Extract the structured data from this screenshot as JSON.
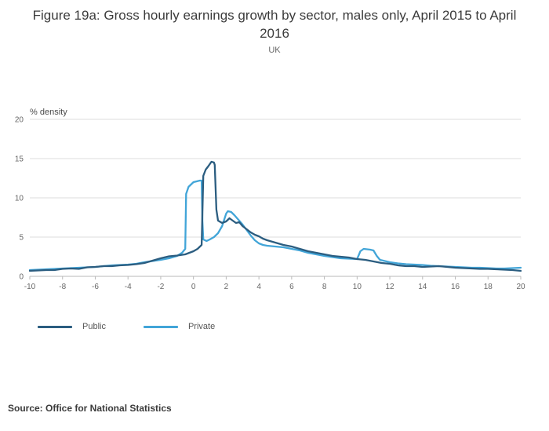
{
  "header": {
    "title": "Figure 19a: Gross hourly earnings growth by sector, males only, April 2015 to April 2016",
    "subtitle": "UK"
  },
  "source": "Source: Office for National Statistics",
  "legend": {
    "items": [
      {
        "label": "Public",
        "color": "#2b5d80"
      },
      {
        "label": "Private",
        "color": "#42a5d8"
      }
    ]
  },
  "chart_data": {
    "type": "line",
    "title": "Figure 19a: Gross hourly earnings growth by sector, males only, April 2015 to April 2016",
    "subtitle": "UK",
    "xlabel": "",
    "ylabel": "% density",
    "xlim": [
      -10,
      20
    ],
    "ylim": [
      0,
      20
    ],
    "xticks": [
      -10,
      -8,
      -6,
      -4,
      -2,
      0,
      2,
      4,
      6,
      8,
      10,
      12,
      14,
      16,
      18,
      20
    ],
    "yticks": [
      0,
      5,
      10,
      15,
      20
    ],
    "grid": true,
    "legend_position": "bottom-left",
    "series": [
      {
        "name": "Public",
        "color": "#2b5d80",
        "points": [
          [
            -10,
            0.7
          ],
          [
            -9.5,
            0.75
          ],
          [
            -9,
            0.8
          ],
          [
            -8.5,
            0.8
          ],
          [
            -8,
            0.95
          ],
          [
            -7.5,
            1.0
          ],
          [
            -7,
            0.95
          ],
          [
            -6.5,
            1.15
          ],
          [
            -6,
            1.2
          ],
          [
            -5.5,
            1.3
          ],
          [
            -5,
            1.3
          ],
          [
            -4.5,
            1.4
          ],
          [
            -4,
            1.45
          ],
          [
            -3.5,
            1.55
          ],
          [
            -3,
            1.7
          ],
          [
            -2.5,
            2.0
          ],
          [
            -2,
            2.3
          ],
          [
            -1.5,
            2.55
          ],
          [
            -1,
            2.65
          ],
          [
            -0.5,
            2.8
          ],
          [
            0,
            3.2
          ],
          [
            0.25,
            3.5
          ],
          [
            0.5,
            4.0
          ],
          [
            0.6,
            12.8
          ],
          [
            0.75,
            13.6
          ],
          [
            0.9,
            14.0
          ],
          [
            1.0,
            14.3
          ],
          [
            1.1,
            14.6
          ],
          [
            1.25,
            14.5
          ],
          [
            1.3,
            14.2
          ],
          [
            1.4,
            8.5
          ],
          [
            1.5,
            7.1
          ],
          [
            1.75,
            6.8
          ],
          [
            2.0,
            7.0
          ],
          [
            2.2,
            7.4
          ],
          [
            2.4,
            7.1
          ],
          [
            2.6,
            6.8
          ],
          [
            2.8,
            6.9
          ],
          [
            3.0,
            6.4
          ],
          [
            3.25,
            6.0
          ],
          [
            3.5,
            5.6
          ],
          [
            3.75,
            5.3
          ],
          [
            4.0,
            5.1
          ],
          [
            4.25,
            4.8
          ],
          [
            4.5,
            4.6
          ],
          [
            5.0,
            4.3
          ],
          [
            5.5,
            4.0
          ],
          [
            6.0,
            3.8
          ],
          [
            6.5,
            3.5
          ],
          [
            7.0,
            3.2
          ],
          [
            7.5,
            3.0
          ],
          [
            8.0,
            2.8
          ],
          [
            8.5,
            2.6
          ],
          [
            9.0,
            2.5
          ],
          [
            9.5,
            2.4
          ],
          [
            10.0,
            2.2
          ],
          [
            10.5,
            2.1
          ],
          [
            11.0,
            1.9
          ],
          [
            11.5,
            1.7
          ],
          [
            12.0,
            1.6
          ],
          [
            12.5,
            1.4
          ],
          [
            13.0,
            1.3
          ],
          [
            13.5,
            1.3
          ],
          [
            14.0,
            1.2
          ],
          [
            14.5,
            1.25
          ],
          [
            15.0,
            1.3
          ],
          [
            15.5,
            1.2
          ],
          [
            16.0,
            1.1
          ],
          [
            16.5,
            1.05
          ],
          [
            17.0,
            1.0
          ],
          [
            17.5,
            0.95
          ],
          [
            18.0,
            0.95
          ],
          [
            18.5,
            0.9
          ],
          [
            19.0,
            0.85
          ],
          [
            19.5,
            0.8
          ],
          [
            20.0,
            0.7
          ]
        ]
      },
      {
        "name": "Private",
        "color": "#42a5d8",
        "points": [
          [
            -10,
            0.8
          ],
          [
            -9.5,
            0.85
          ],
          [
            -9,
            0.9
          ],
          [
            -8.5,
            0.95
          ],
          [
            -8,
            1.0
          ],
          [
            -7.5,
            1.05
          ],
          [
            -7,
            1.1
          ],
          [
            -6.5,
            1.15
          ],
          [
            -6,
            1.2
          ],
          [
            -5.5,
            1.3
          ],
          [
            -5,
            1.4
          ],
          [
            -4.5,
            1.45
          ],
          [
            -4,
            1.5
          ],
          [
            -3.5,
            1.6
          ],
          [
            -3,
            1.8
          ],
          [
            -2.5,
            1.95
          ],
          [
            -2,
            2.1
          ],
          [
            -1.5,
            2.3
          ],
          [
            -1,
            2.6
          ],
          [
            -0.7,
            3.0
          ],
          [
            -0.5,
            3.5
          ],
          [
            -0.45,
            10.5
          ],
          [
            -0.3,
            11.4
          ],
          [
            -0.1,
            11.8
          ],
          [
            0,
            12.0
          ],
          [
            0.2,
            12.1
          ],
          [
            0.4,
            12.2
          ],
          [
            0.5,
            12.2
          ],
          [
            0.55,
            7.0
          ],
          [
            0.6,
            4.7
          ],
          [
            0.8,
            4.5
          ],
          [
            1.0,
            4.7
          ],
          [
            1.25,
            5.0
          ],
          [
            1.5,
            5.5
          ],
          [
            1.75,
            6.4
          ],
          [
            2.0,
            8.0
          ],
          [
            2.1,
            8.3
          ],
          [
            2.3,
            8.2
          ],
          [
            2.5,
            7.8
          ],
          [
            2.75,
            7.2
          ],
          [
            3.0,
            6.6
          ],
          [
            3.25,
            5.9
          ],
          [
            3.5,
            5.2
          ],
          [
            3.75,
            4.6
          ],
          [
            4.0,
            4.2
          ],
          [
            4.25,
            4.0
          ],
          [
            4.5,
            3.9
          ],
          [
            5.0,
            3.8
          ],
          [
            5.5,
            3.7
          ],
          [
            6.0,
            3.5
          ],
          [
            6.5,
            3.3
          ],
          [
            7.0,
            3.0
          ],
          [
            7.5,
            2.8
          ],
          [
            8.0,
            2.6
          ],
          [
            8.5,
            2.45
          ],
          [
            9.0,
            2.3
          ],
          [
            9.5,
            2.25
          ],
          [
            10.0,
            2.2
          ],
          [
            10.2,
            3.2
          ],
          [
            10.4,
            3.5
          ],
          [
            10.6,
            3.45
          ],
          [
            10.8,
            3.4
          ],
          [
            11.0,
            3.3
          ],
          [
            11.2,
            2.6
          ],
          [
            11.4,
            2.1
          ],
          [
            11.6,
            2.0
          ],
          [
            12.0,
            1.8
          ],
          [
            12.5,
            1.65
          ],
          [
            13.0,
            1.55
          ],
          [
            13.5,
            1.5
          ],
          [
            14.0,
            1.45
          ],
          [
            14.5,
            1.35
          ],
          [
            15.0,
            1.3
          ],
          [
            15.5,
            1.25
          ],
          [
            16.0,
            1.2
          ],
          [
            16.5,
            1.15
          ],
          [
            17.0,
            1.1
          ],
          [
            17.5,
            1.1
          ],
          [
            18.0,
            1.05
          ],
          [
            18.5,
            1.0
          ],
          [
            19.0,
            1.0
          ],
          [
            19.5,
            1.05
          ],
          [
            20.0,
            1.1
          ]
        ]
      }
    ]
  }
}
